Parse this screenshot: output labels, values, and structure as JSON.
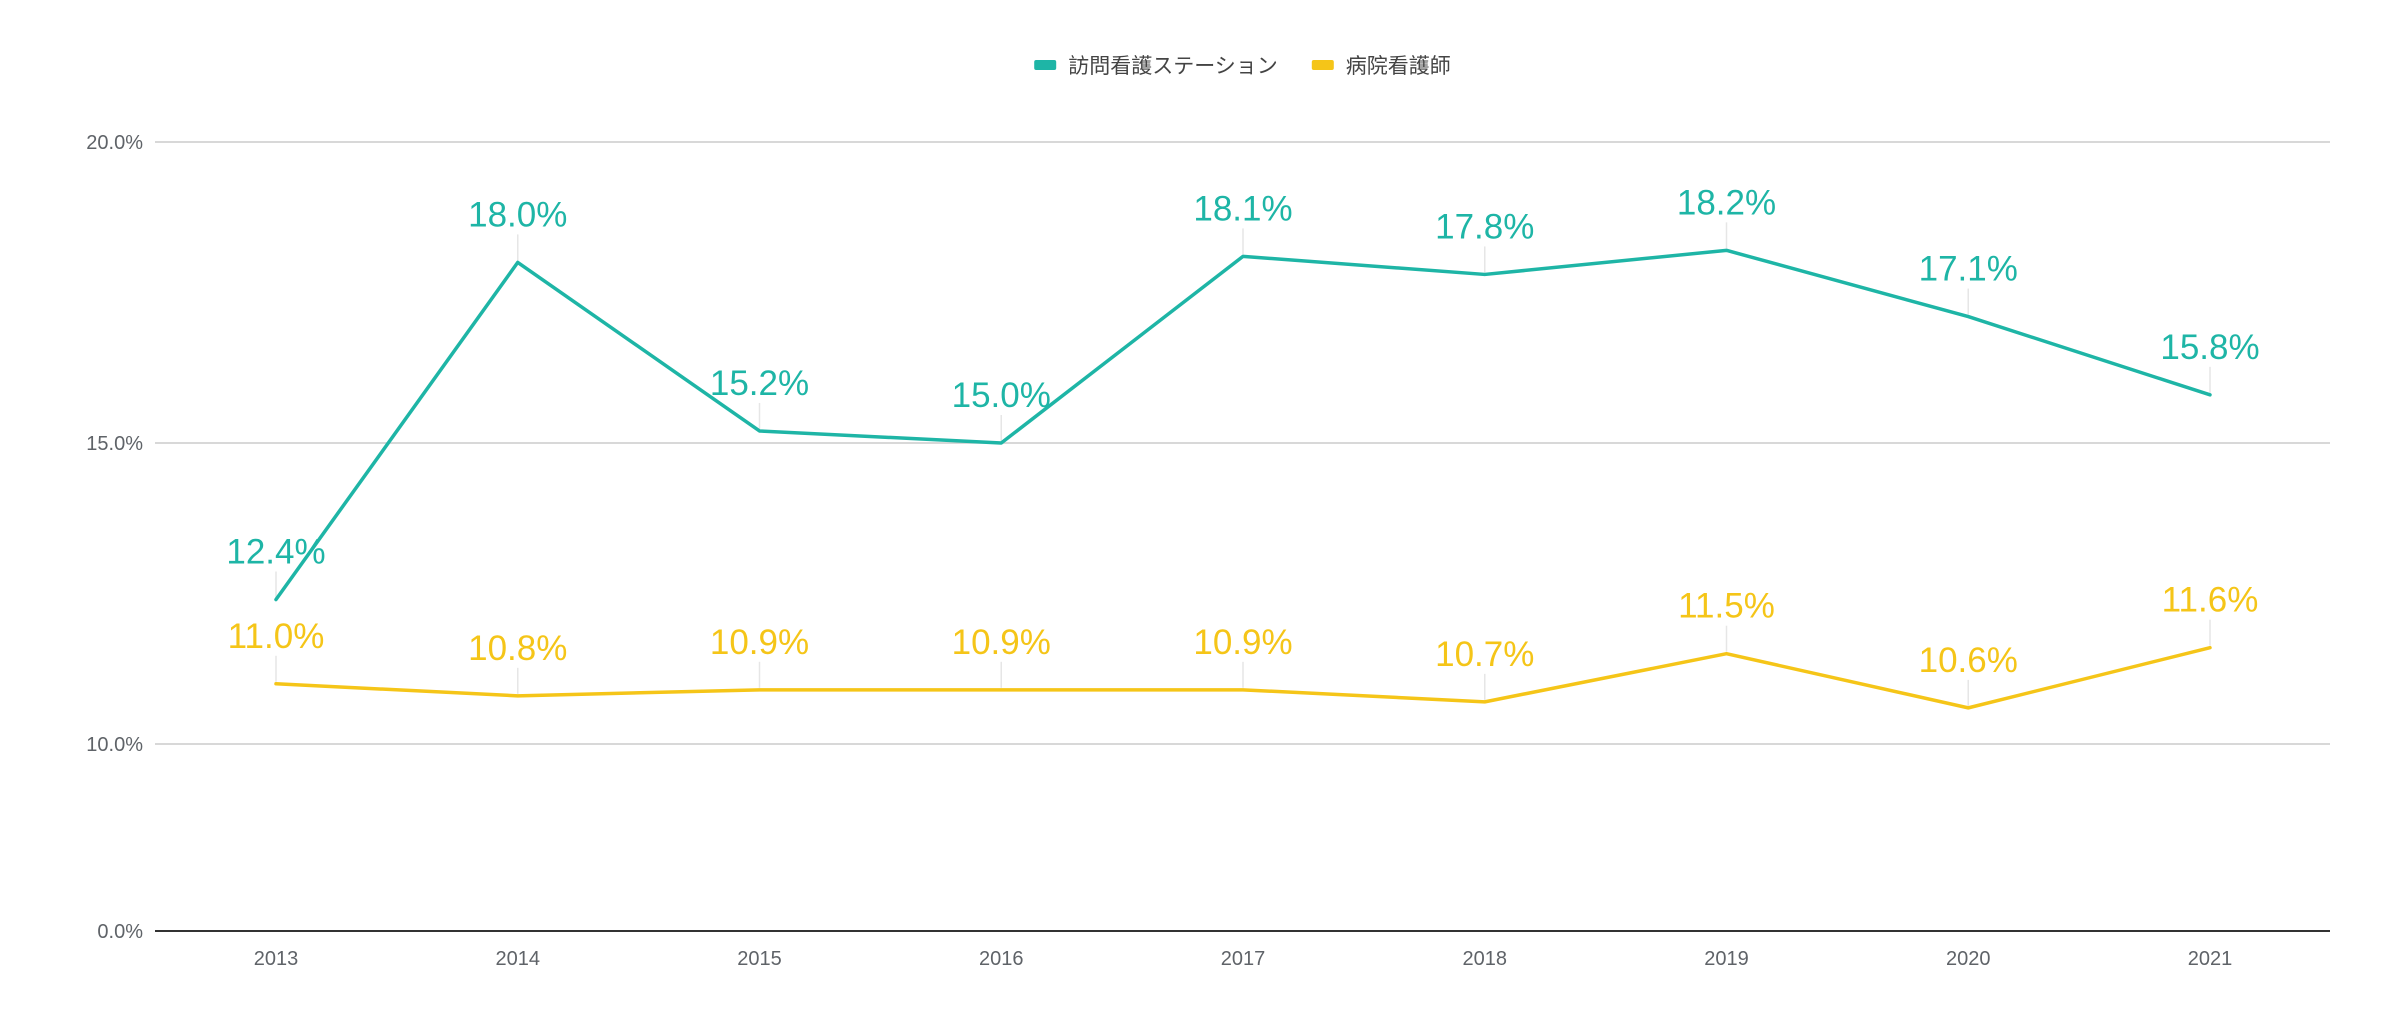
{
  "chart_data": {
    "type": "line",
    "title": "",
    "xlabel": "",
    "ylabel": "",
    "x": [
      "2013",
      "2014",
      "2015",
      "2016",
      "2017",
      "2018",
      "2019",
      "2020",
      "2021"
    ],
    "series": [
      {
        "name": "訪問看護ステーション",
        "color": "#1eb5a6",
        "values": [
          12.4,
          18.0,
          15.2,
          15.0,
          18.1,
          17.8,
          18.2,
          17.1,
          15.8
        ],
        "labels": [
          "12.4%",
          "18.0%",
          "15.2%",
          "15.0%",
          "18.1%",
          "17.8%",
          "18.2%",
          "17.1%",
          "15.8%"
        ]
      },
      {
        "name": "病院看護師",
        "color": "#f5c518",
        "values": [
          11.0,
          10.8,
          10.9,
          10.9,
          10.9,
          10.7,
          11.5,
          10.6,
          11.6
        ],
        "labels": [
          "11.0%",
          "10.8%",
          "10.9%",
          "10.9%",
          "10.9%",
          "10.7%",
          "11.5%",
          "10.6%",
          "11.6%"
        ]
      }
    ],
    "y_ticks": [
      {
        "value": 0,
        "label": "0.0%"
      },
      {
        "value": 10,
        "label": "10.0%"
      },
      {
        "value": 15,
        "label": "15.0%"
      },
      {
        "value": 20,
        "label": "20.0%"
      }
    ],
    "ylim": [
      0,
      20
    ],
    "y_scale": "piecewise-broken (0 to 10 compressed)",
    "grid": true,
    "legend_position": "top-center"
  }
}
